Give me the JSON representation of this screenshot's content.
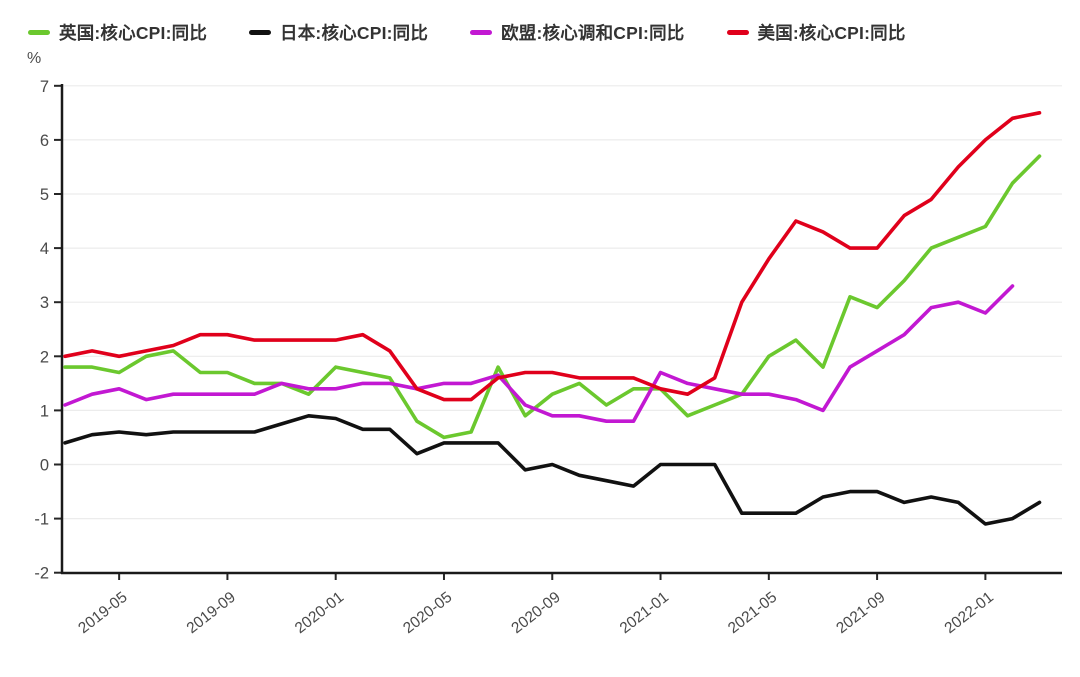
{
  "legend": {
    "items": [
      {
        "label": "英国:核心CPI:同比",
        "color": "#6bc82e"
      },
      {
        "label": "日本:核心CPI:同比",
        "color": "#111111"
      },
      {
        "label": "欧盟:核心调和CPI:同比",
        "color": "#c218d2"
      },
      {
        "label": "美国:核心CPI:同比",
        "color": "#e0001b"
      }
    ]
  },
  "chart_data": {
    "type": "line",
    "title": "",
    "xlabel": "",
    "ylabel": "%",
    "ylim": [
      -2,
      7
    ],
    "y_ticks": [
      7,
      6,
      5,
      4,
      3,
      2,
      1,
      0,
      -1,
      -2
    ],
    "grid": true,
    "legend_position": "top",
    "x_months": "monthly from 2019-03 to 2022-03",
    "x_tick_labels": [
      "2019-05",
      "2019-09",
      "2020-01",
      "2020-05",
      "2020-09",
      "2021-01",
      "2021-05",
      "2021-09",
      "2022-01"
    ],
    "x_tick_indices": [
      2,
      6,
      10,
      14,
      18,
      22,
      26,
      30,
      34
    ],
    "n_points": 37,
    "series": [
      {
        "name": "英国:核心CPI:同比",
        "color": "#6bc82e",
        "values": [
          1.8,
          1.8,
          1.7,
          2.0,
          2.1,
          1.7,
          1.7,
          1.5,
          1.5,
          1.3,
          1.8,
          1.7,
          1.6,
          0.8,
          0.5,
          0.6,
          1.8,
          0.9,
          1.3,
          1.5,
          1.1,
          1.4,
          1.4,
          0.9,
          1.1,
          1.3,
          2.0,
          2.3,
          1.8,
          3.1,
          2.9,
          3.4,
          4.0,
          4.2,
          4.4,
          5.2,
          5.7
        ]
      },
      {
        "name": "日本:核心CPI:同比",
        "color": "#111111",
        "values": [
          0.4,
          0.55,
          0.6,
          0.55,
          0.6,
          0.6,
          0.6,
          0.6,
          0.75,
          0.9,
          0.85,
          0.65,
          0.65,
          0.2,
          0.4,
          0.4,
          0.4,
          -0.1,
          0.0,
          -0.2,
          -0.3,
          -0.4,
          0.0,
          0.0,
          0.0,
          -0.9,
          -0.9,
          -0.9,
          -0.6,
          -0.5,
          -0.5,
          -0.7,
          -0.6,
          -0.7,
          -1.1,
          -1.0,
          -0.7
        ]
      },
      {
        "name": "欧盟:核心调和CPI:同比",
        "color": "#c218d2",
        "values": [
          1.1,
          1.3,
          1.4,
          1.2,
          1.3,
          1.3,
          1.3,
          1.3,
          1.5,
          1.4,
          1.4,
          1.5,
          1.5,
          1.4,
          1.5,
          1.5,
          1.65,
          1.1,
          0.9,
          0.9,
          0.8,
          0.8,
          1.7,
          1.5,
          1.4,
          1.3,
          1.3,
          1.2,
          1.0,
          1.8,
          2.1,
          2.4,
          2.9,
          3.0,
          2.8,
          3.3
        ]
      },
      {
        "name": "美国:核心CPI:同比",
        "color": "#e0001b",
        "values": [
          2.0,
          2.1,
          2.0,
          2.1,
          2.2,
          2.4,
          2.4,
          2.3,
          2.3,
          2.3,
          2.3,
          2.4,
          2.1,
          1.4,
          1.2,
          1.2,
          1.6,
          1.7,
          1.7,
          1.6,
          1.6,
          1.6,
          1.4,
          1.3,
          1.6,
          3.0,
          3.8,
          4.5,
          4.3,
          4.0,
          4.0,
          4.6,
          4.9,
          5.5,
          6.0,
          6.4,
          6.5
        ]
      }
    ]
  }
}
